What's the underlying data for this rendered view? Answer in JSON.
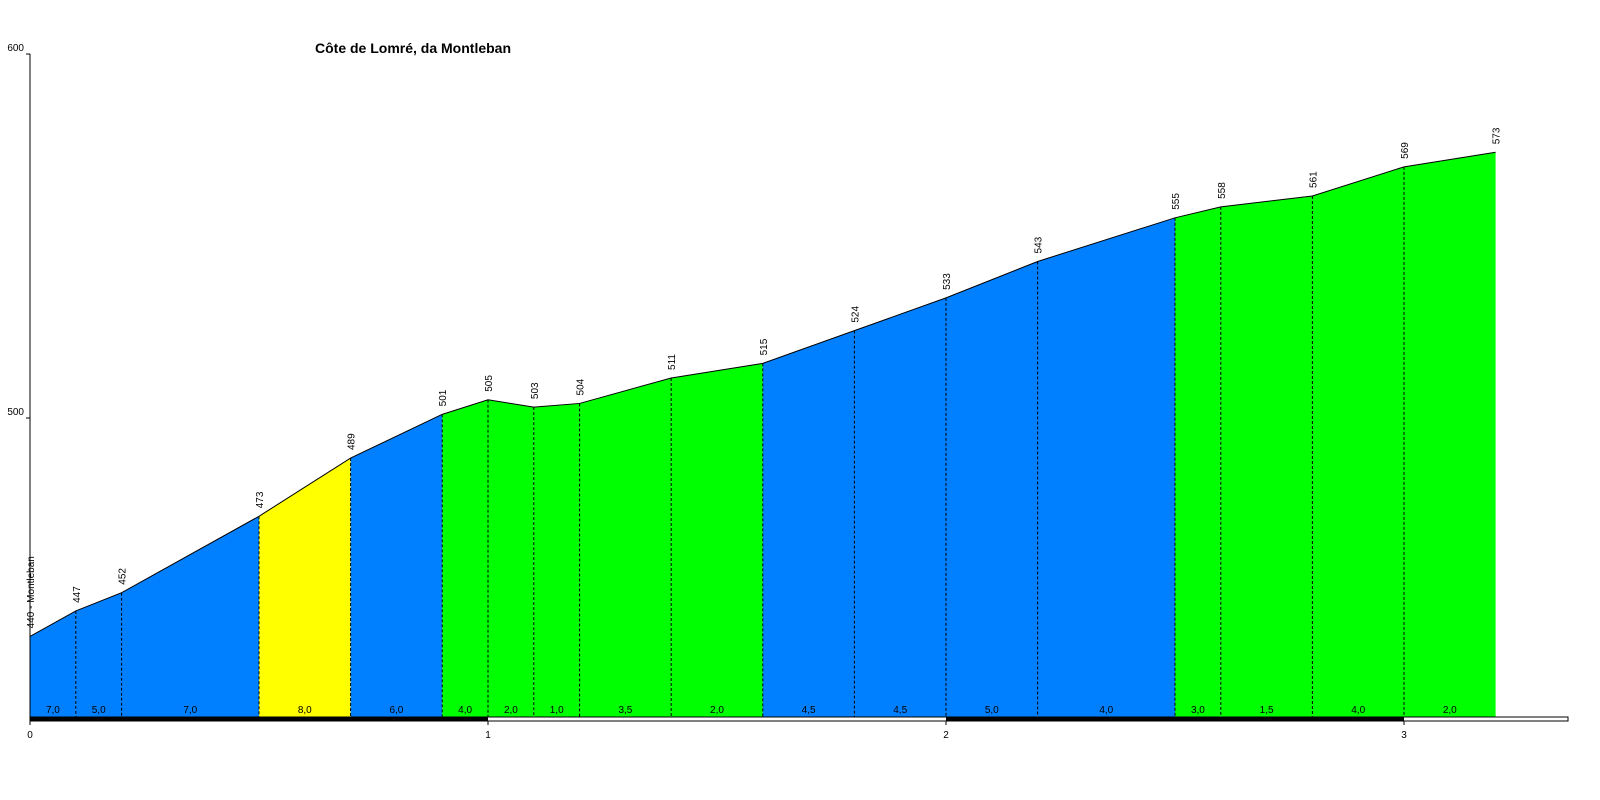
{
  "chart_data": {
    "type": "area",
    "title": "Côte de Lomré, da Montleban",
    "xlim": [
      0,
      3.35
    ],
    "ylim": [
      420,
      600
    ],
    "x_ticks": [
      0,
      1,
      2,
      3
    ],
    "y_ticks": [
      500,
      600
    ],
    "start_label": "440 - Montleban",
    "points": [
      {
        "x": 0.0,
        "y": 440
      },
      {
        "x": 0.1,
        "y": 447
      },
      {
        "x": 0.2,
        "y": 452
      },
      {
        "x": 0.5,
        "y": 473
      },
      {
        "x": 0.7,
        "y": 489
      },
      {
        "x": 0.9,
        "y": 501
      },
      {
        "x": 1.0,
        "y": 505
      },
      {
        "x": 1.1,
        "y": 503
      },
      {
        "x": 1.2,
        "y": 504
      },
      {
        "x": 1.4,
        "y": 511
      },
      {
        "x": 1.6,
        "y": 515
      },
      {
        "x": 1.8,
        "y": 524
      },
      {
        "x": 2.0,
        "y": 533
      },
      {
        "x": 2.2,
        "y": 543
      },
      {
        "x": 2.5,
        "y": 555
      },
      {
        "x": 2.6,
        "y": 558
      },
      {
        "x": 2.8,
        "y": 561
      },
      {
        "x": 3.0,
        "y": 569
      },
      {
        "x": 3.2,
        "y": 573
      }
    ],
    "point_labels": [
      "440 - Montleban",
      "447",
      "452",
      "473",
      "489",
      "501",
      "505",
      "503",
      "504",
      "511",
      "515",
      "524",
      "533",
      "543",
      "555",
      "558",
      "561",
      "569",
      "573"
    ],
    "segments": [
      {
        "from": 0.0,
        "to": 0.1,
        "grade": "7,0",
        "color": "#0080ff"
      },
      {
        "from": 0.1,
        "to": 0.2,
        "grade": "5,0",
        "color": "#0080ff"
      },
      {
        "from": 0.2,
        "to": 0.5,
        "grade": "7,0",
        "color": "#0080ff"
      },
      {
        "from": 0.5,
        "to": 0.7,
        "grade": "8,0",
        "color": "#ffff00"
      },
      {
        "from": 0.7,
        "to": 0.9,
        "grade": "6,0",
        "color": "#0080ff"
      },
      {
        "from": 0.9,
        "to": 1.0,
        "grade": "4,0",
        "color": "#00ff00"
      },
      {
        "from": 1.0,
        "to": 1.1,
        "grade": "2,0",
        "color": "#00ff00"
      },
      {
        "from": 1.1,
        "to": 1.2,
        "grade": "1,0",
        "color": "#00ff00"
      },
      {
        "from": 1.2,
        "to": 1.4,
        "grade": "3,5",
        "color": "#00ff00"
      },
      {
        "from": 1.4,
        "to": 1.6,
        "grade": "2,0",
        "color": "#00ff00"
      },
      {
        "from": 1.6,
        "to": 1.8,
        "grade": "4,5",
        "color": "#0080ff"
      },
      {
        "from": 1.8,
        "to": 2.0,
        "grade": "4,5",
        "color": "#0080ff"
      },
      {
        "from": 2.0,
        "to": 2.2,
        "grade": "5,0",
        "color": "#0080ff"
      },
      {
        "from": 2.2,
        "to": 2.5,
        "grade": "4,0",
        "color": "#0080ff"
      },
      {
        "from": 2.5,
        "to": 2.6,
        "grade": "3,0",
        "color": "#00ff00"
      },
      {
        "from": 2.6,
        "to": 2.8,
        "grade": "1,5",
        "color": "#00ff00"
      },
      {
        "from": 2.8,
        "to": 3.0,
        "grade": "4,0",
        "color": "#00ff00"
      },
      {
        "from": 3.0,
        "to": 3.2,
        "grade": "2,0",
        "color": "#00ff00"
      }
    ],
    "colors": {
      "background": "#ffffff",
      "axis": "#000000",
      "outline": "#000000"
    }
  }
}
